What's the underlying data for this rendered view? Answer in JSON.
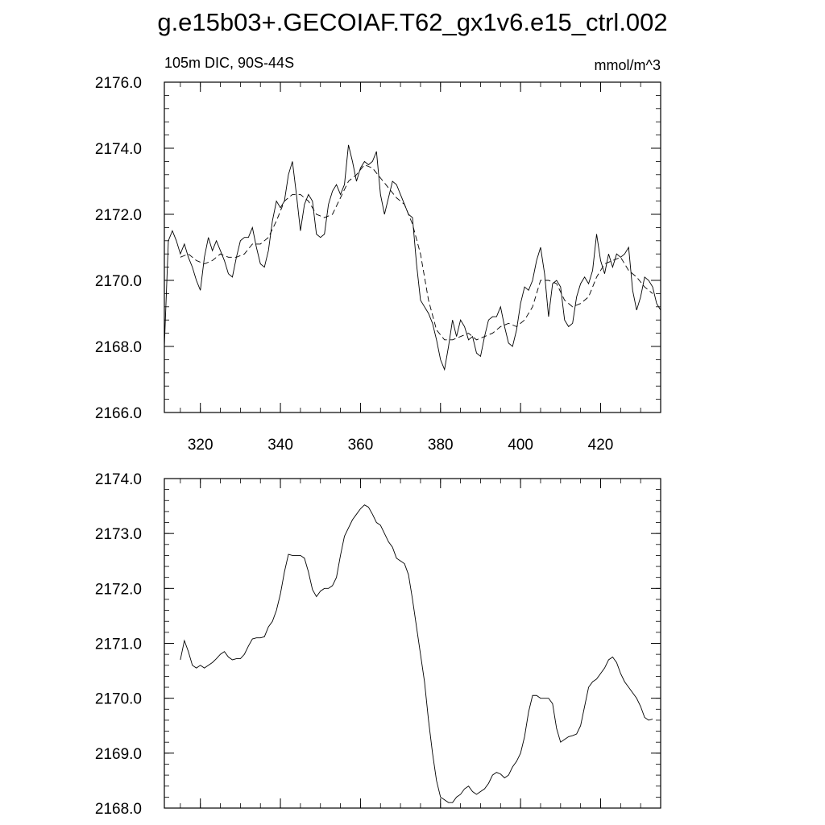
{
  "title": "g.e15b03+.GECOIAF.T62_gx1v6.e15_ctrl.002",
  "chart_data": [
    {
      "type": "line",
      "subtitle_left": "105m DIC, 90S-44S",
      "subtitle_right": "mmol/m^3",
      "xlim": [
        311,
        435
      ],
      "ylim": [
        2166.0,
        2176.0
      ],
      "x_ticks": [
        320,
        340,
        360,
        380,
        400,
        420
      ],
      "x_tick_labels": [
        "320",
        "340",
        "360",
        "380",
        "400",
        "420"
      ],
      "y_ticks": [
        2166.0,
        2168.0,
        2170.0,
        2172.0,
        2174.0,
        2176.0
      ],
      "y_tick_labels": [
        "2166.0",
        "2168.0",
        "2170.0",
        "2172.0",
        "2174.0",
        "2176.0"
      ],
      "series": [
        {
          "style": "solid",
          "x": [
            311,
            312,
            313,
            314,
            315,
            316,
            317,
            318,
            319,
            320,
            321,
            322,
            323,
            324,
            325,
            326,
            327,
            328,
            329,
            330,
            331,
            332,
            333,
            334,
            335,
            336,
            337,
            338,
            339,
            340,
            341,
            342,
            343,
            344,
            345,
            346,
            347,
            348,
            349,
            350,
            351,
            352,
            353,
            354,
            355,
            356,
            357,
            358,
            359,
            360,
            361,
            362,
            363,
            364,
            365,
            366,
            367,
            368,
            369,
            370,
            371,
            372,
            373,
            374,
            375,
            376,
            377,
            378,
            379,
            380,
            381,
            382,
            383,
            384,
            385,
            386,
            387,
            388,
            389,
            390,
            391,
            392,
            393,
            394,
            395,
            396,
            397,
            398,
            399,
            400,
            401,
            402,
            403,
            404,
            405,
            406,
            407,
            408,
            409,
            410,
            411,
            412,
            413,
            414,
            415,
            416,
            417,
            418,
            419,
            420,
            421,
            422,
            423,
            424,
            425,
            426,
            427,
            428,
            429,
            430,
            431,
            432,
            433,
            434,
            435
          ],
          "y": [
            2168.0,
            2171.2,
            2171.5,
            2171.2,
            2170.8,
            2171.1,
            2170.7,
            2170.4,
            2170.0,
            2169.7,
            2170.7,
            2171.3,
            2170.9,
            2171.2,
            2170.9,
            2170.6,
            2170.2,
            2170.1,
            2170.7,
            2171.2,
            2171.3,
            2171.3,
            2171.6,
            2171.0,
            2170.5,
            2170.4,
            2170.9,
            2171.8,
            2172.4,
            2172.2,
            2172.4,
            2173.2,
            2173.6,
            2172.6,
            2171.5,
            2172.3,
            2172.6,
            2172.4,
            2171.4,
            2171.3,
            2171.4,
            2172.3,
            2172.7,
            2172.9,
            2172.6,
            2172.9,
            2174.1,
            2173.6,
            2173.0,
            2173.4,
            2173.6,
            2173.5,
            2173.6,
            2173.9,
            2172.6,
            2172.0,
            2172.5,
            2173.0,
            2172.9,
            2172.6,
            2172.3,
            2172.0,
            2171.9,
            2170.5,
            2169.4,
            2169.2,
            2169.0,
            2168.7,
            2168.2,
            2167.6,
            2167.3,
            2168.0,
            2168.8,
            2168.3,
            2168.8,
            2168.6,
            2168.2,
            2168.3,
            2167.8,
            2167.7,
            2168.3,
            2168.8,
            2168.9,
            2168.9,
            2169.2,
            2168.6,
            2168.1,
            2168.0,
            2168.5,
            2169.3,
            2169.8,
            2169.7,
            2170.0,
            2170.6,
            2171.0,
            2170.2,
            2168.9,
            2169.9,
            2170.0,
            2169.8,
            2168.8,
            2168.6,
            2168.7,
            2169.5,
            2169.9,
            2170.1,
            2169.9,
            2170.3,
            2171.4,
            2170.6,
            2170.2,
            2170.8,
            2170.4,
            2170.8,
            2170.7,
            2170.8,
            2171.0,
            2169.7,
            2169.1,
            2169.5,
            2170.1,
            2170.0,
            2169.8,
            2169.3,
            2169.1
          ]
        },
        {
          "style": "dashed",
          "x": [
            315,
            317,
            319,
            321,
            323,
            325,
            327,
            329,
            331,
            333,
            335,
            337,
            339,
            341,
            343,
            345,
            347,
            349,
            351,
            353,
            355,
            357,
            359,
            361,
            363,
            365,
            367,
            369,
            371,
            373,
            375,
            377,
            379,
            381,
            383,
            385,
            387,
            389,
            391,
            393,
            395,
            397,
            399,
            401,
            403,
            405,
            407,
            409,
            411,
            413,
            415,
            417,
            419,
            421,
            423,
            425,
            427,
            429,
            431,
            433
          ],
          "y": [
            2170.7,
            2170.8,
            2170.6,
            2170.5,
            2170.6,
            2170.8,
            2170.7,
            2170.7,
            2170.8,
            2171.1,
            2171.1,
            2171.3,
            2171.8,
            2172.4,
            2172.6,
            2172.6,
            2172.4,
            2172.0,
            2171.9,
            2172.0,
            2172.5,
            2173.0,
            2173.2,
            2173.5,
            2173.4,
            2173.1,
            2172.8,
            2172.5,
            2172.3,
            2171.7,
            2170.8,
            2169.4,
            2168.5,
            2168.2,
            2168.2,
            2168.3,
            2168.4,
            2168.2,
            2168.3,
            2168.4,
            2168.6,
            2168.7,
            2168.6,
            2168.8,
            2169.2,
            2170.0,
            2170.0,
            2169.9,
            2169.4,
            2169.2,
            2169.3,
            2169.5,
            2170.1,
            2170.5,
            2170.6,
            2170.7,
            2170.3,
            2170.1,
            2169.8,
            2169.6
          ]
        }
      ]
    },
    {
      "type": "line",
      "xlim": [
        311,
        435
      ],
      "ylim": [
        2168.0,
        2174.0
      ],
      "x_ticks": [
        320,
        340,
        360,
        380,
        400,
        420
      ],
      "x_tick_labels": [],
      "y_ticks": [
        2168.0,
        2169.0,
        2170.0,
        2171.0,
        2172.0,
        2173.0,
        2174.0
      ],
      "y_tick_labels": [
        "2168.0",
        "2169.0",
        "2170.0",
        "2171.0",
        "2172.0",
        "2173.0",
        "2174.0"
      ],
      "series": [
        {
          "style": "solid",
          "x": [
            315,
            316,
            317,
            318,
            319,
            320,
            321,
            322,
            323,
            324,
            325,
            326,
            327,
            328,
            329,
            330,
            331,
            332,
            333,
            334,
            335,
            336,
            337,
            338,
            339,
            340,
            341,
            342,
            343,
            344,
            345,
            346,
            347,
            348,
            349,
            350,
            351,
            352,
            353,
            354,
            355,
            356,
            357,
            358,
            359,
            360,
            361,
            362,
            363,
            364,
            365,
            366,
            367,
            368,
            369,
            370,
            371,
            372,
            373,
            374,
            375,
            376,
            377,
            378,
            379,
            380,
            381,
            382,
            383,
            384,
            385,
            386,
            387,
            388,
            389,
            390,
            391,
            392,
            393,
            394,
            395,
            396,
            397,
            398,
            399,
            400,
            401,
            402,
            403,
            404,
            405,
            406,
            407,
            408,
            409,
            410,
            411,
            412,
            413,
            414,
            415,
            416,
            417,
            418,
            419,
            420,
            421,
            422,
            423,
            424,
            425,
            426,
            427,
            428,
            429,
            430,
            431,
            432,
            433
          ],
          "y": [
            2170.7,
            2171.05,
            2170.85,
            2170.6,
            2170.55,
            2170.6,
            2170.55,
            2170.6,
            2170.65,
            2170.72,
            2170.8,
            2170.85,
            2170.75,
            2170.7,
            2170.72,
            2170.72,
            2170.8,
            2170.95,
            2171.08,
            2171.1,
            2171.1,
            2171.12,
            2171.3,
            2171.4,
            2171.6,
            2171.9,
            2172.3,
            2172.62,
            2172.6,
            2172.6,
            2172.6,
            2172.55,
            2172.3,
            2171.98,
            2171.85,
            2171.95,
            2172.0,
            2172.0,
            2172.05,
            2172.2,
            2172.6,
            2172.95,
            2173.1,
            2173.25,
            2173.35,
            2173.45,
            2173.52,
            2173.48,
            2173.35,
            2173.2,
            2173.15,
            2173.0,
            2172.85,
            2172.75,
            2172.55,
            2172.5,
            2172.45,
            2172.25,
            2171.8,
            2171.3,
            2170.8,
            2170.3,
            2169.6,
            2169.0,
            2168.5,
            2168.2,
            2168.15,
            2168.1,
            2168.1,
            2168.2,
            2168.25,
            2168.35,
            2168.4,
            2168.3,
            2168.25,
            2168.3,
            2168.35,
            2168.45,
            2168.6,
            2168.65,
            2168.62,
            2168.55,
            2168.6,
            2168.75,
            2168.85,
            2169.0,
            2169.3,
            2169.75,
            2170.05,
            2170.05,
            2170.0,
            2170.0,
            2170.0,
            2169.9,
            2169.45,
            2169.2,
            2169.25,
            2169.3,
            2169.32,
            2169.35,
            2169.5,
            2169.85,
            2170.2,
            2170.3,
            2170.35,
            2170.45,
            2170.55,
            2170.7,
            2170.75,
            2170.65,
            2170.45,
            2170.3,
            2170.2,
            2170.1,
            2170.0,
            2169.85,
            2169.65,
            2169.6,
            2169.62
          ]
        }
      ]
    }
  ]
}
